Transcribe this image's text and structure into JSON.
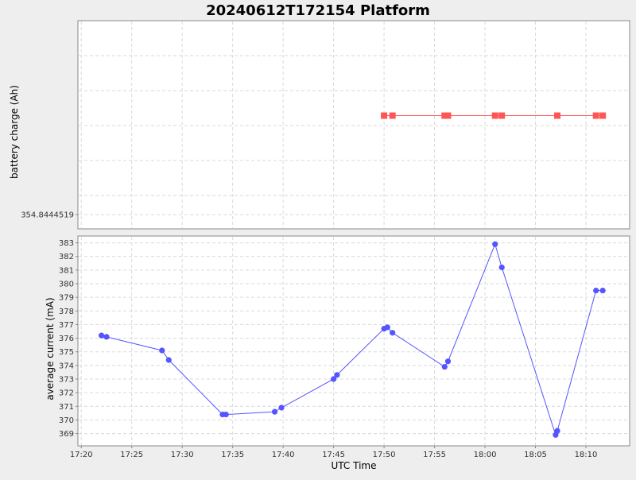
{
  "title": "20240612T172154 Platform",
  "chart_data": [
    {
      "type": "scatter",
      "title": "20240612T172154 Platform",
      "ylabel": "battery charge (Ah)",
      "y_tick_labels": [
        "354.8444519"
      ],
      "grid": true,
      "marker": "square",
      "color": "#ff5555",
      "series": [
        {
          "x": [
            "17:50:00",
            "17:50:50",
            "17:56:00",
            "17:56:20",
            "18:01:00",
            "18:01:40",
            "18:07:10",
            "18:11:00",
            "18:11:40"
          ],
          "y": [
            354.8444526,
            354.8444526,
            354.8444526,
            354.8444526,
            354.8444526,
            354.8444526,
            354.8444526,
            354.8444526,
            354.8444526
          ]
        }
      ]
    },
    {
      "type": "line",
      "xlabel": "UTC Time",
      "ylabel": "average current (mA)",
      "x_ticks": [
        "17:20",
        "17:25",
        "17:30",
        "17:35",
        "17:40",
        "17:45",
        "17:50",
        "17:55",
        "18:00",
        "18:05",
        "18:10"
      ],
      "y_ticks": [
        369,
        370,
        371,
        372,
        373,
        374,
        375,
        376,
        377,
        378,
        379,
        380,
        381,
        382,
        383
      ],
      "xlim": [
        "17:19:40",
        "18:14:20"
      ],
      "ylim": [
        368.1,
        383.5
      ],
      "grid": true,
      "marker": "circle",
      "color": "#5555ff",
      "series": [
        {
          "x": [
            "17:22:00",
            "17:22:30",
            "17:28:00",
            "17:28:40",
            "17:34:00",
            "17:34:20",
            "17:39:10",
            "17:39:50",
            "17:45:00",
            "17:45:20",
            "17:50:00",
            "17:50:20",
            "17:50:50",
            "17:56:00",
            "17:56:20",
            "18:01:00",
            "18:01:40",
            "18:07:00",
            "18:07:10",
            "18:11:00",
            "18:11:40"
          ],
          "y": [
            376.2,
            376.1,
            375.1,
            374.4,
            370.4,
            370.4,
            370.6,
            370.9,
            373.0,
            373.3,
            376.7,
            376.8,
            376.4,
            373.9,
            374.3,
            382.9,
            381.2,
            368.9,
            369.2,
            379.5,
            379.5
          ]
        }
      ]
    }
  ]
}
